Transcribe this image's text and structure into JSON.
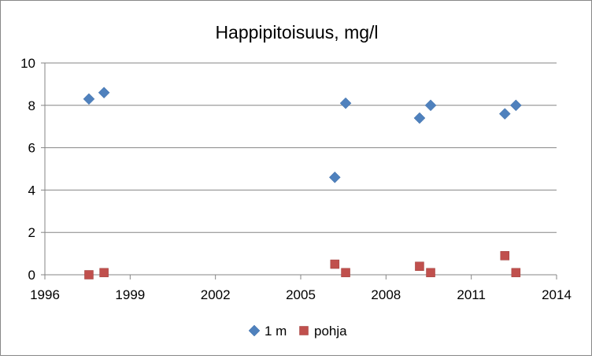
{
  "chart_data": {
    "type": "scatter",
    "title": "Happipitoisuus, mg/l",
    "xlabel": "",
    "ylabel": "",
    "xlim": [
      1996,
      2014
    ],
    "ylim": [
      0,
      10
    ],
    "xticks": [
      1996,
      1999,
      2002,
      2005,
      2008,
      2011,
      2014
    ],
    "yticks": [
      0,
      2,
      4,
      6,
      8,
      10
    ],
    "grid": "horizontal",
    "legend_position": "bottom",
    "series": [
      {
        "name": "1 m",
        "color": "#4F81BD",
        "marker": "diamond",
        "x": [
          1997.55,
          1998.08,
          2006.2,
          2006.58,
          2009.18,
          2009.57,
          2012.18,
          2012.57
        ],
        "y": [
          8.3,
          8.6,
          4.6,
          8.1,
          7.4,
          8.0,
          7.6,
          8.0
        ]
      },
      {
        "name": "pohja",
        "color": "#C0504D",
        "marker": "square",
        "x": [
          1997.55,
          1998.08,
          2006.2,
          2006.58,
          2009.18,
          2009.57,
          2012.18,
          2012.57
        ],
        "y": [
          0.0,
          0.1,
          0.5,
          0.1,
          0.4,
          0.1,
          0.9,
          0.1
        ]
      }
    ]
  }
}
